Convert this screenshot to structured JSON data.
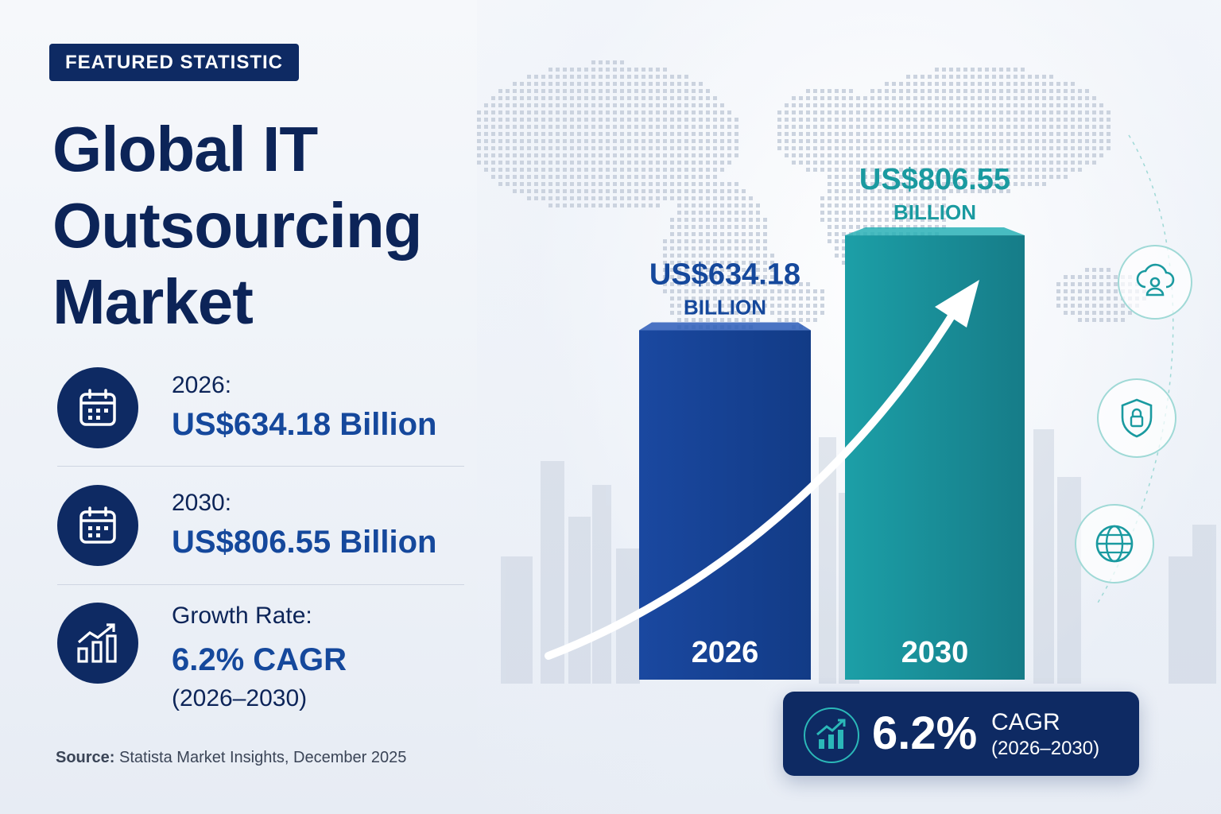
{
  "badge": "FEATURED STATISTIC",
  "title": "Global IT Outsourcing Market",
  "stats": [
    {
      "label": "2026:",
      "value": "US$634.18 Billion",
      "icon": "calendar-icon"
    },
    {
      "label": "2030:",
      "value": "US$806.55 Billion",
      "icon": "calendar-icon"
    },
    {
      "label": "Growth Rate:",
      "value": "6.2% CAGR",
      "sub": "(2026–2030)",
      "icon": "growth-chart-icon"
    }
  ],
  "source": {
    "label": "Source:",
    "text": "Statista Market Insights, December 2025"
  },
  "cagr_box": {
    "value": "6.2%",
    "label": "CAGR",
    "range": "(2026–2030)",
    "icon": "growth-chart-icon"
  },
  "side_icons": [
    "cloud-user-icon",
    "shield-lock-icon",
    "globe-icon"
  ],
  "colors": {
    "navy": "#0e2a63",
    "blue_bar": "#1f4fa8",
    "teal_bar": "#1e9aa3",
    "value_blue": "#15489c",
    "value_teal": "#1a9aa0"
  },
  "chart_data": {
    "type": "bar",
    "categories": [
      "2026",
      "2030"
    ],
    "values": [
      634.18,
      806.55
    ],
    "value_labels": [
      {
        "amount": "US$634.18",
        "unit": "BILLION"
      },
      {
        "amount": "US$806.55",
        "unit": "BILLION"
      }
    ],
    "title": "",
    "xlabel": "",
    "ylabel": "",
    "grid": false,
    "trend_arrow": true
  }
}
